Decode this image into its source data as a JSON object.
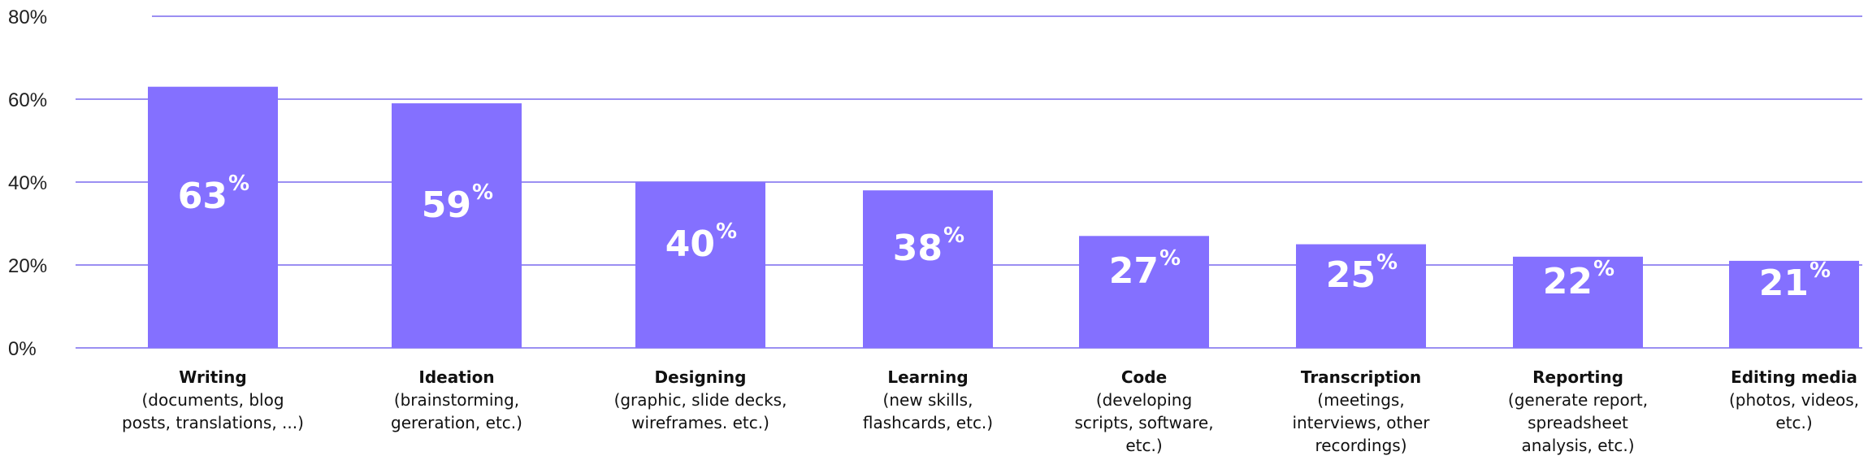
{
  "chart_data": {
    "type": "bar",
    "ylim": [
      0,
      80
    ],
    "y_ticks": [
      "0%",
      "20%",
      "40%",
      "60%",
      "80%"
    ],
    "grid": true,
    "bar_color": "#8470ff",
    "grid_color": "#9b8ff2",
    "categories": [
      {
        "title": "Writing",
        "desc": [
          "(documents, blog",
          "posts, translations, ...)"
        ]
      },
      {
        "title": "Ideation",
        "desc": [
          "(brainstorming,",
          "gereration, etc.)"
        ]
      },
      {
        "title": "Designing",
        "desc": [
          "(graphic, slide decks,",
          "wireframes. etc.)"
        ]
      },
      {
        "title": "Learning",
        "desc": [
          "(new skills,",
          "flashcards, etc.)"
        ]
      },
      {
        "title": "Code",
        "desc": [
          "(developing",
          "scripts, software,",
          "etc.)"
        ]
      },
      {
        "title": "Transcription",
        "desc": [
          "(meetings,",
          "interviews, other",
          "recordings)"
        ]
      },
      {
        "title": "Reporting",
        "desc": [
          "(generate report,",
          "spreadsheet",
          "analysis, etc.)"
        ]
      },
      {
        "title": "Editing media",
        "desc": [
          "(photos, videos,",
          "etc.)"
        ]
      }
    ],
    "values": [
      63,
      59,
      40,
      38,
      27,
      25,
      22,
      21
    ],
    "value_labels": [
      "63",
      "59",
      "40",
      "38",
      "27",
      "25",
      "22",
      "21"
    ],
    "value_suffix": "%"
  }
}
